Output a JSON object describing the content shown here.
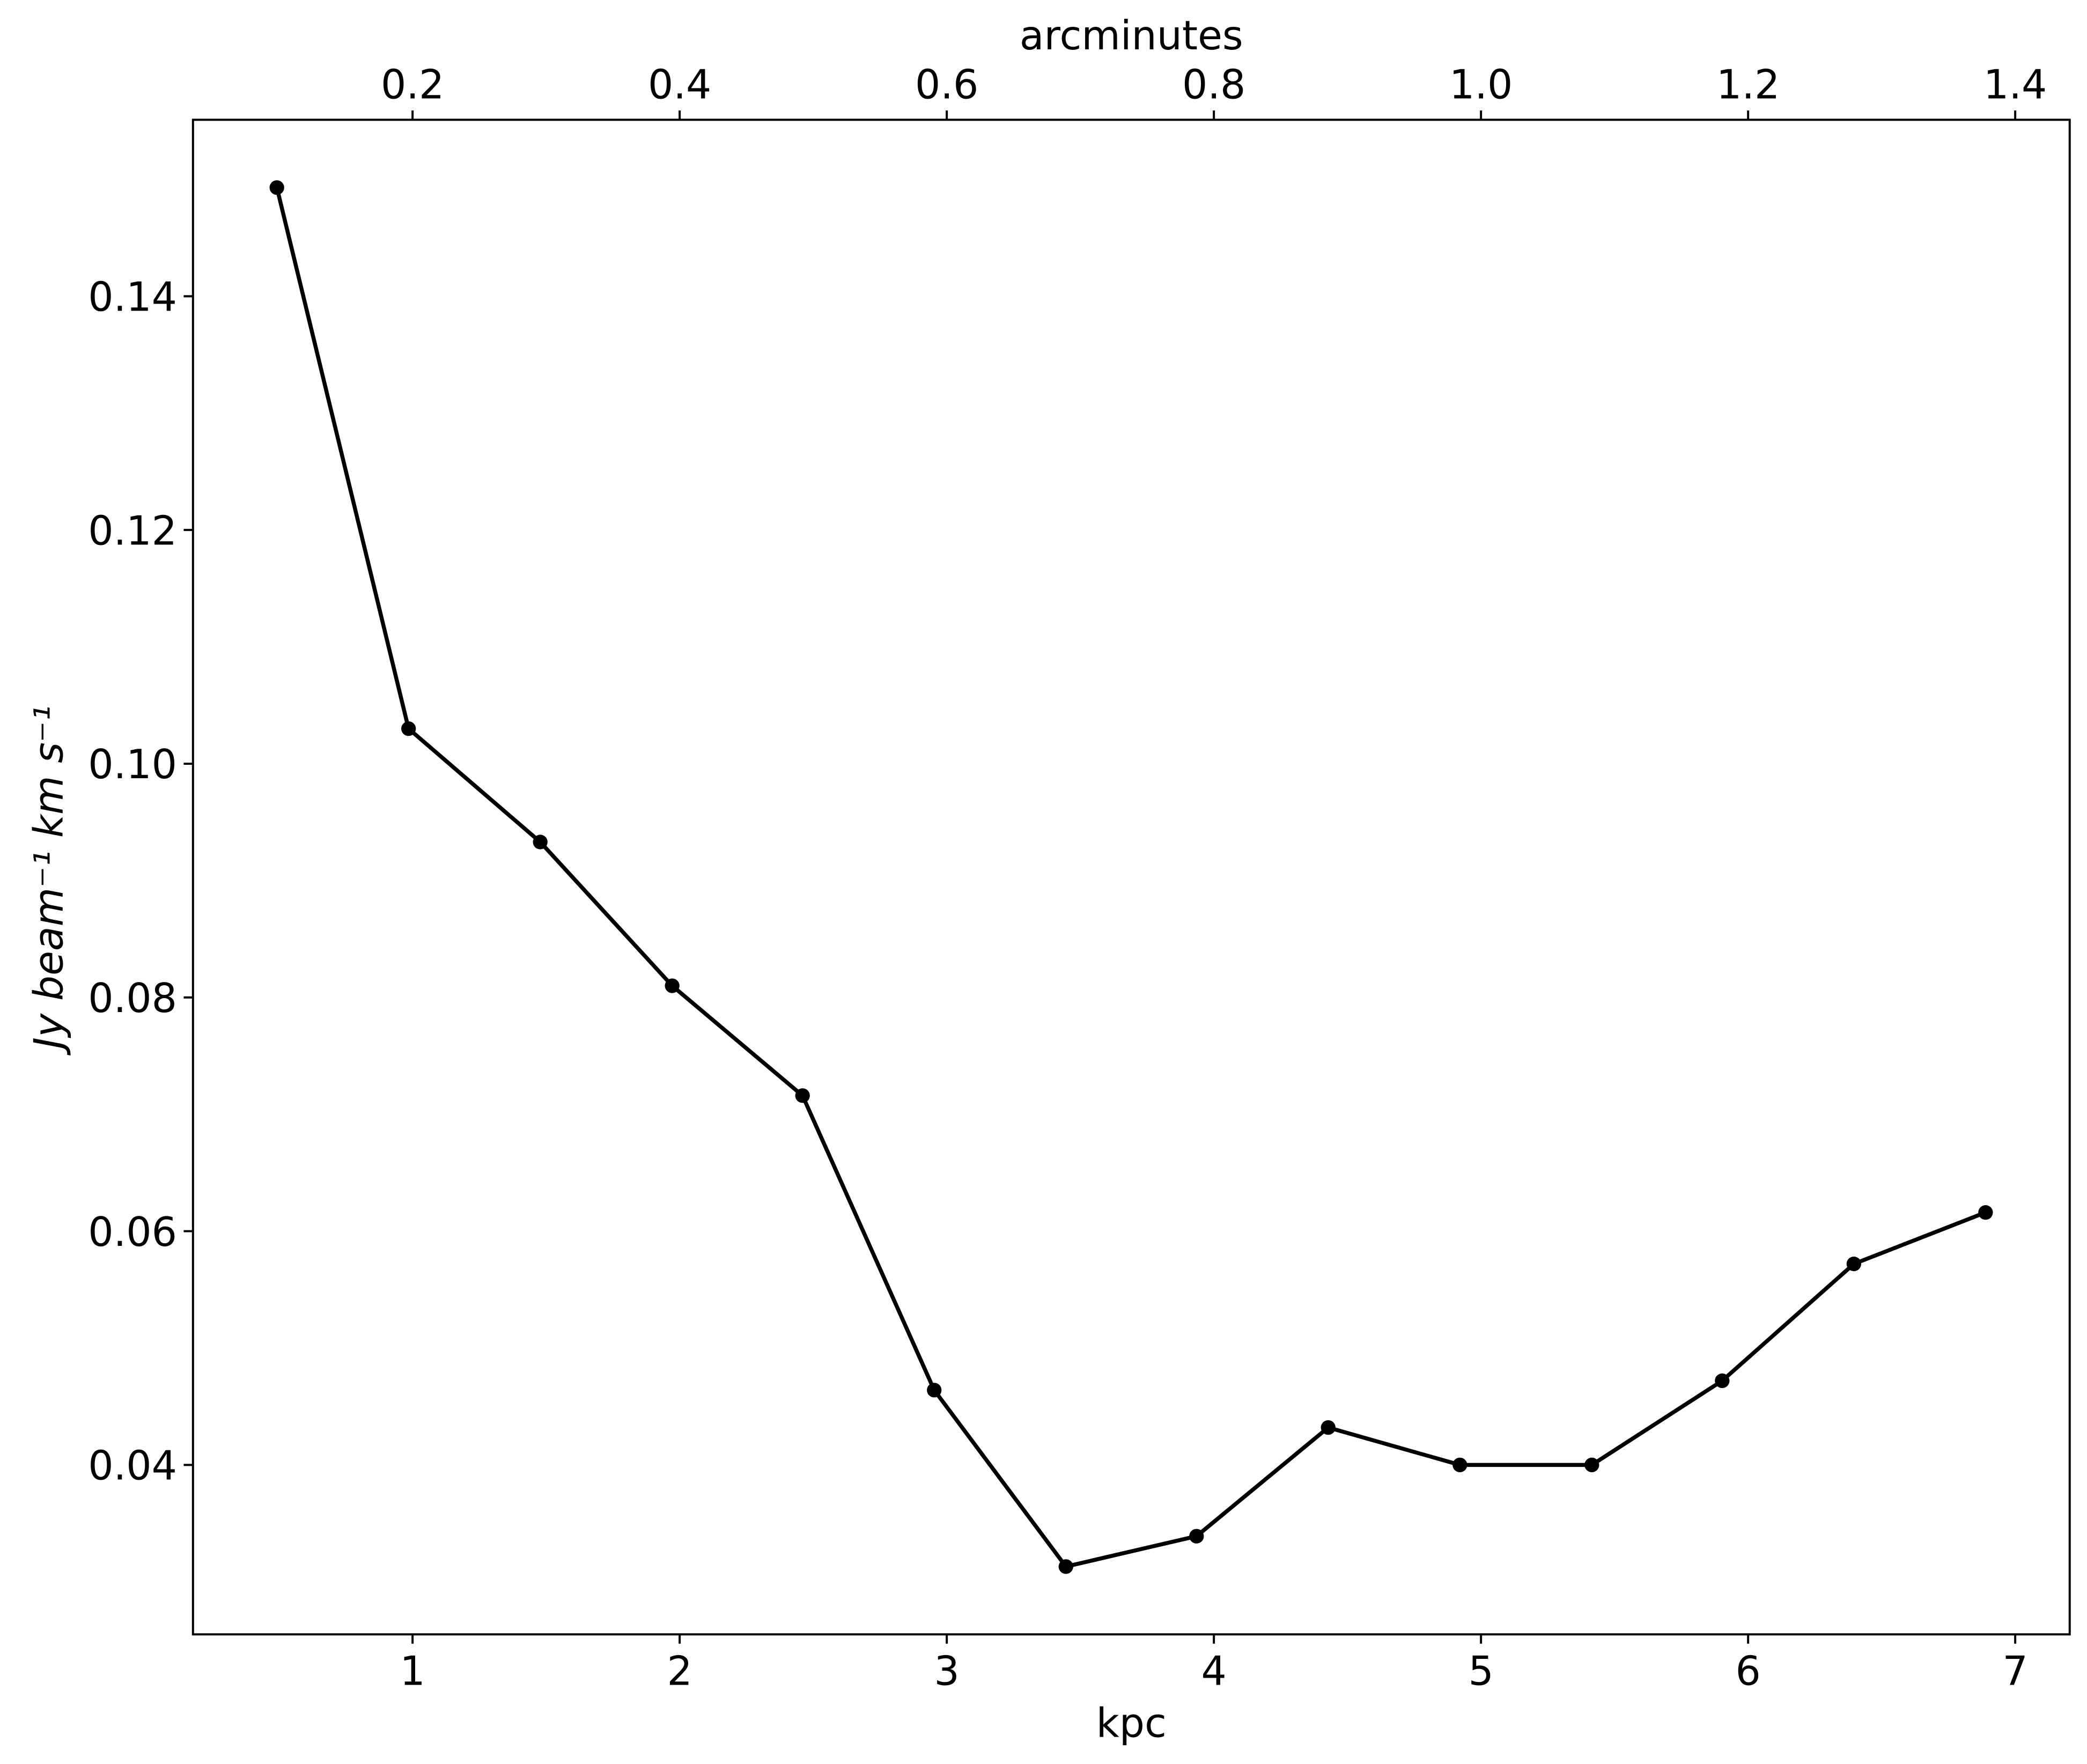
{
  "chart_data": {
    "type": "line",
    "xlabel": "kpc",
    "ylabel": "Jy beam⁻¹ km s⁻¹",
    "x2label": "arcminutes",
    "x": [
      0.492,
      0.985,
      1.478,
      1.972,
      2.46,
      2.953,
      3.446,
      3.935,
      4.428,
      4.921,
      5.415,
      5.903,
      6.396,
      6.889
    ],
    "series": [
      {
        "color": "#000000",
        "values": [
          0.1493,
          0.103,
          0.0933,
          0.081,
          0.0716,
          0.0464,
          0.0313,
          0.0339,
          0.0432,
          0.04,
          0.04,
          0.0472,
          0.0572,
          0.0616
        ]
      }
    ],
    "xlim": [
      0.178,
      7.204
    ],
    "xticks": [
      1,
      2,
      3,
      4,
      5,
      6,
      7
    ],
    "x2lim": [
      0.0356,
      1.4408
    ],
    "x2ticks": [
      0.2,
      0.4,
      0.6,
      0.8,
      {
        "value": 1,
        "label": "1.0"
      },
      1.2,
      1.4
    ],
    "ylim": [
      0.0255,
      0.1551
    ],
    "yticks": [
      0.04,
      0.06,
      0.08,
      {
        "value": 0.1,
        "label": "0.10"
      },
      0.12,
      0.14
    ],
    "grid": false
  }
}
